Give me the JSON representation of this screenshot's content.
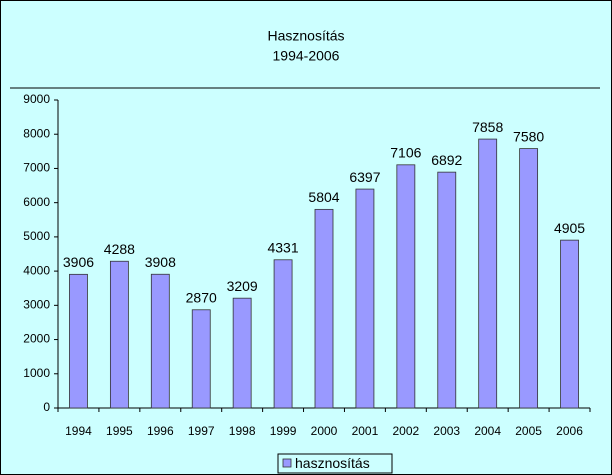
{
  "chart_data": {
    "type": "bar",
    "title": "Hasznosítás",
    "subtitle": "1994-2006",
    "categories": [
      "1994",
      "1995",
      "1996",
      "1997",
      "1998",
      "1999",
      "2000",
      "2001",
      "2002",
      "2003",
      "2004",
      "2005",
      "2006"
    ],
    "series": [
      {
        "name": "hasznosítás",
        "color": "#9999ff",
        "values": [
          3906,
          4288,
          3908,
          2870,
          3209,
          4331,
          5804,
          6397,
          7106,
          6892,
          7858,
          7580,
          4905
        ]
      }
    ],
    "ylim": [
      0,
      9000
    ],
    "yticks": [
      0,
      1000,
      2000,
      3000,
      4000,
      5000,
      6000,
      7000,
      8000,
      9000
    ],
    "legend": "bottom"
  }
}
